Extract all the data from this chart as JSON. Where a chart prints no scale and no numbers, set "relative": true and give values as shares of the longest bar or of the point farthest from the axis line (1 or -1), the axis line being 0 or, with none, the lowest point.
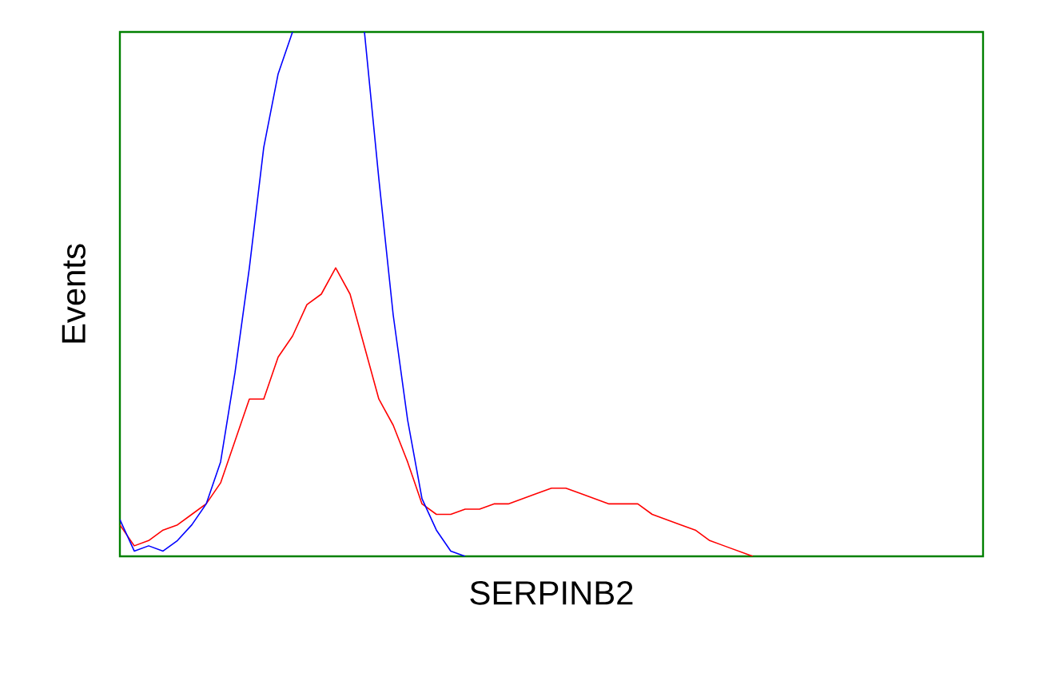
{
  "chart_data": {
    "type": "line",
    "relative": true,
    "xlabel": "SERPINB2",
    "ylabel": "Events",
    "marker": "none",
    "line_style": "solid",
    "categories": [
      null,
      null,
      null,
      null,
      null,
      null,
      null,
      null,
      null,
      null,
      null,
      null,
      null,
      null,
      null,
      null,
      null,
      null,
      null,
      null,
      null,
      null,
      null,
      null,
      null,
      null,
      null,
      null,
      null,
      null,
      null,
      null,
      null,
      null,
      null,
      null,
      null,
      null,
      null,
      null,
      null,
      null,
      null,
      null,
      null,
      null,
      null,
      null,
      null,
      null,
      null,
      null,
      null,
      null,
      null,
      null,
      null,
      null,
      null,
      null,
      null
    ],
    "series": [
      {
        "color": "#ff0000",
        "values": [
          0.06,
          0.02,
          0.03,
          0.05,
          0.06,
          0.08,
          0.1,
          0.14,
          0.22,
          0.3,
          0.3,
          0.38,
          0.42,
          0.48,
          0.5,
          0.55,
          0.5,
          0.4,
          0.3,
          0.25,
          0.18,
          0.1,
          0.08,
          0.08,
          0.09,
          0.09,
          0.1,
          0.1,
          0.11,
          0.12,
          0.13,
          0.13,
          0.12,
          0.11,
          0.1,
          0.1,
          0.1,
          0.08,
          0.07,
          0.06,
          0.05,
          0.03,
          0.02,
          0.01,
          0,
          null,
          null,
          null,
          null,
          null,
          null,
          null,
          null,
          null,
          null,
          null,
          null,
          null,
          null,
          null,
          null
        ]
      },
      {
        "color": "#0000ff",
        "values": [
          0.07,
          0.01,
          0.02,
          0.01,
          0.03,
          0.06,
          0.1,
          0.18,
          0.35,
          0.55,
          0.78,
          0.92,
          1,
          null,
          null,
          null,
          null,
          1,
          0.72,
          0.46,
          0.26,
          0.11,
          0.05,
          0.01,
          0,
          null,
          null,
          null,
          null,
          null,
          null,
          null,
          null,
          null,
          null,
          null,
          null,
          null,
          null,
          null,
          null,
          null,
          null,
          null,
          null,
          null,
          null,
          null,
          null,
          null,
          null,
          null,
          null,
          null,
          null,
          null,
          null,
          null,
          null,
          null,
          null
        ]
      }
    ]
  }
}
